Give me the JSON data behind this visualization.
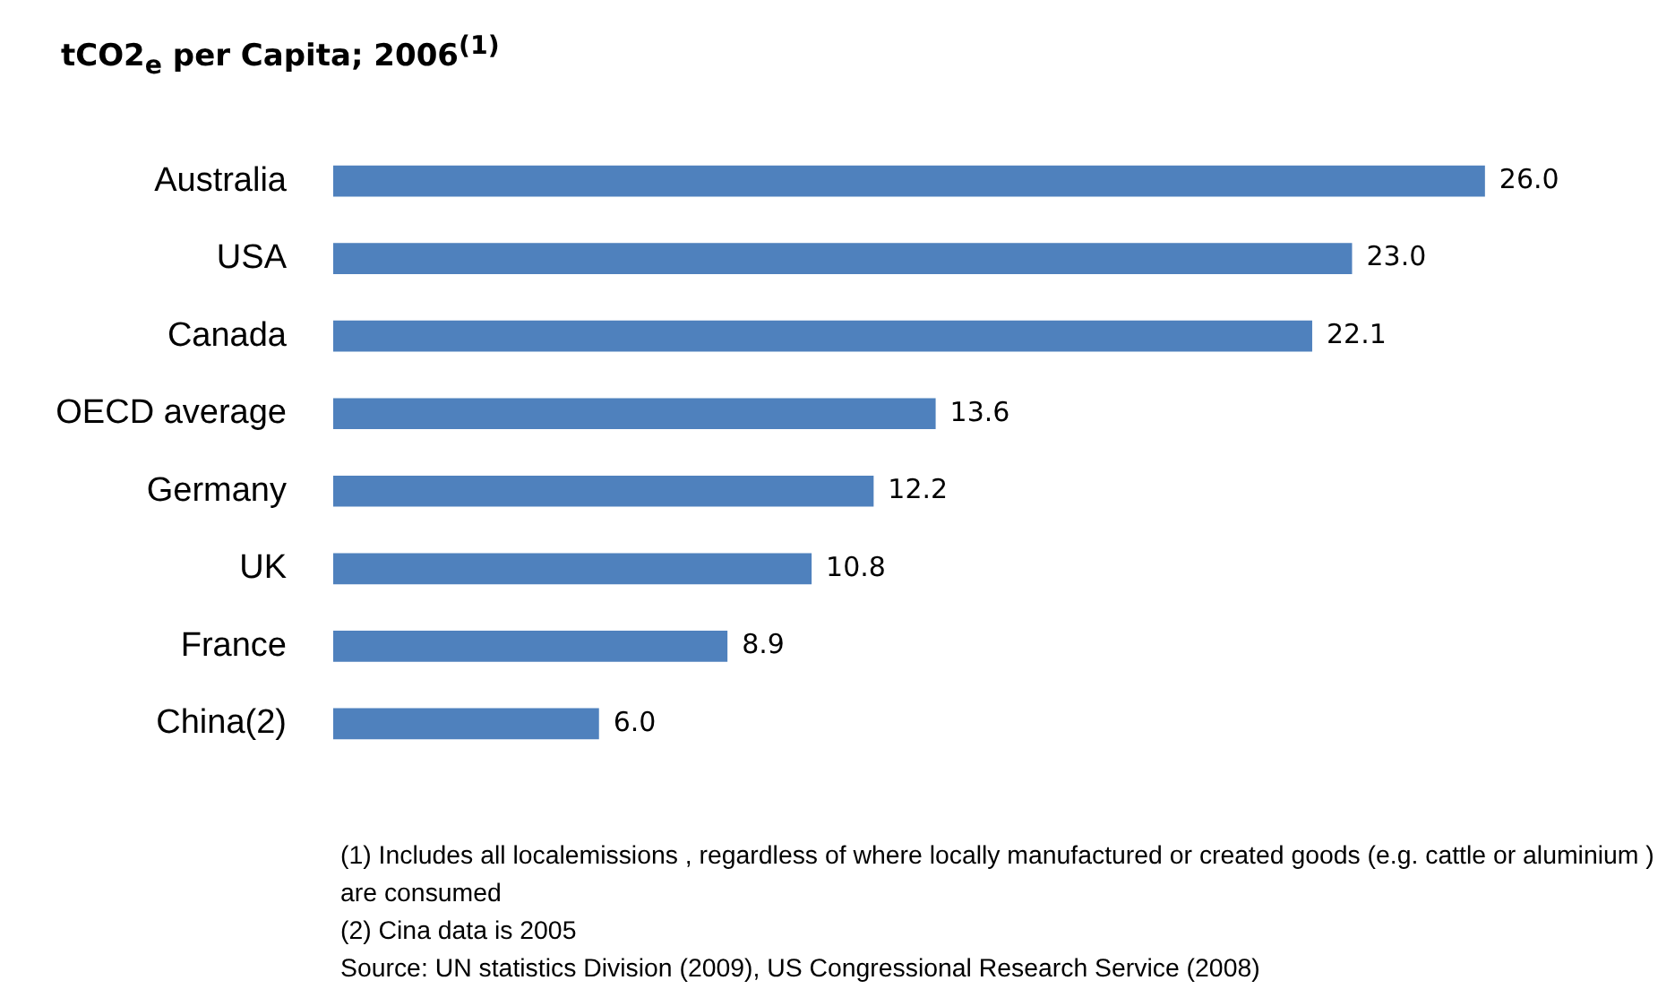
{
  "chart_data": {
    "type": "bar",
    "orientation": "horizontal",
    "title": "tCO2$_{e}$ per Capita; 2006$^{(1)}$",
    "categories": [
      "Australia",
      "USA",
      "Canada",
      "OECD average",
      "Germany",
      "UK",
      "France",
      "China(2)"
    ],
    "values": [
      26.0,
      23.0,
      22.1,
      13.6,
      12.2,
      10.8,
      8.9,
      6.0
    ],
    "value_labels": [
      "26.0",
      "23.0",
      "22.1",
      "13.6",
      "12.2",
      "10.8",
      "8.9",
      "6.0"
    ],
    "color": "#4f81bd",
    "annotations": [
      "(1) Includes all localemissions , regardless of where locally manufactured or created goods (e.g. cattle or aluminium ) are consumed",
      "(2) Cina data is 2005",
      "Source: UN statistics Division (2009), US Congressional Research Service (2008)"
    ]
  }
}
